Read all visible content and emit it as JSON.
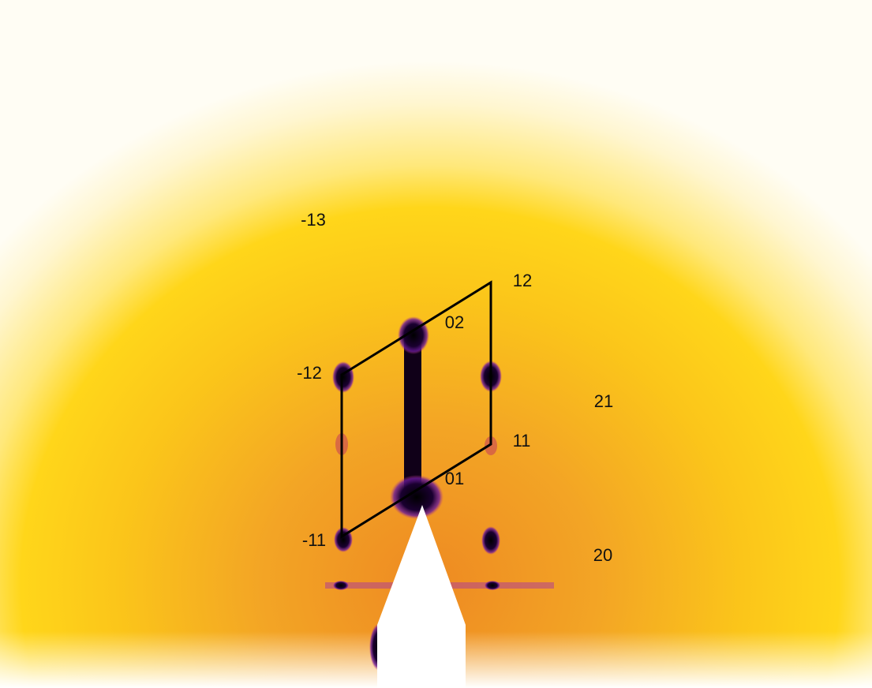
{
  "labels": [
    "-13",
    "12",
    "02",
    "-12",
    "21",
    "11",
    "01",
    "-11",
    "20"
  ]
}
